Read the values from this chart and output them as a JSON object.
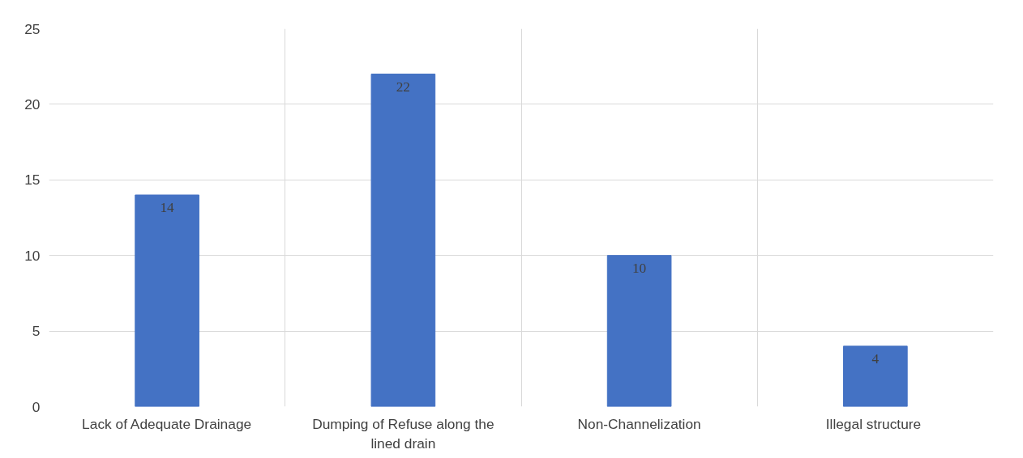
{
  "chart_data": {
    "type": "bar",
    "categories": [
      "Lack of Adequate Drainage",
      "Dumping of Refuse along the lined drain",
      "Non-Channelization",
      "Illegal  structure"
    ],
    "values": [
      14,
      22,
      10,
      4
    ],
    "color": "#4472c4",
    "ylim": [
      0,
      25
    ],
    "yticks": [
      0,
      5,
      10,
      15,
      20,
      25
    ],
    "grid": true,
    "data_labels": true
  }
}
